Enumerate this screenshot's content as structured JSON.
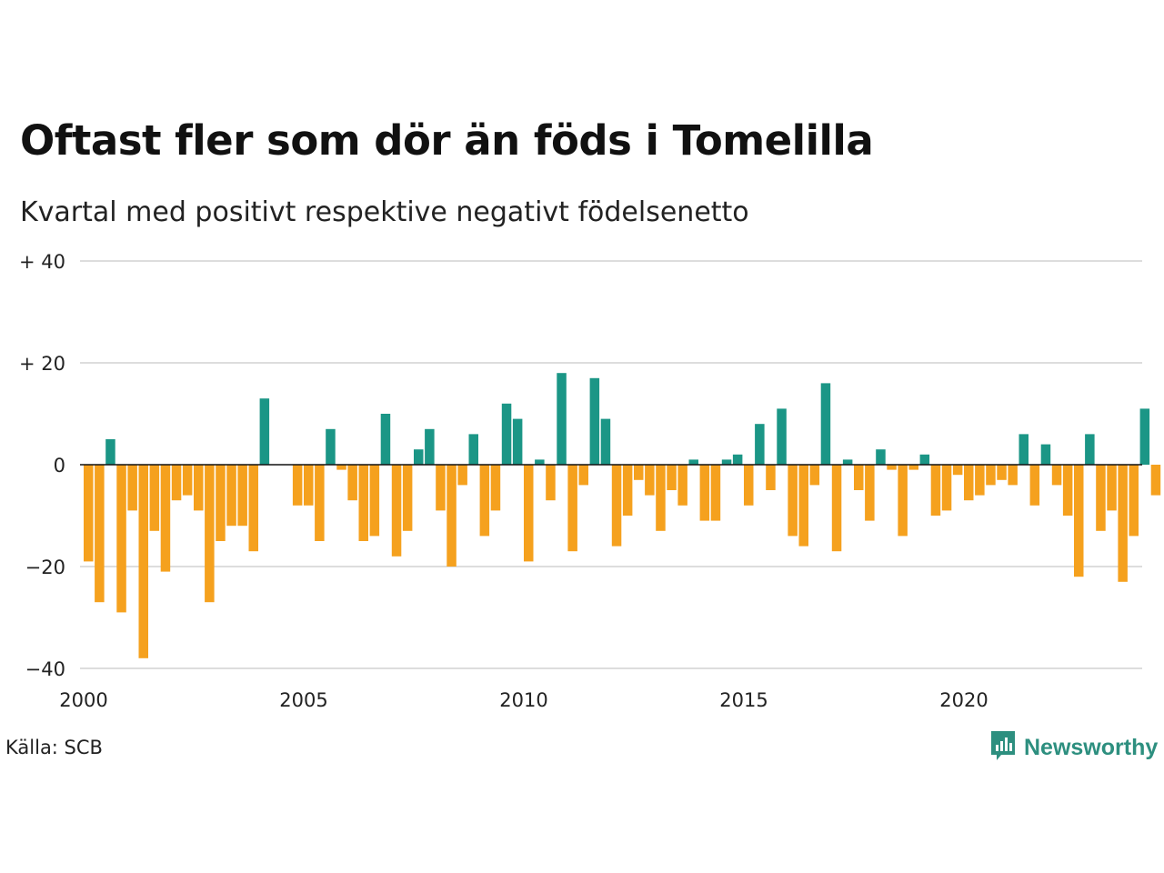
{
  "title": "Oftast fler som dör än föds i Tomelilla",
  "subtitle": "Kvartal med positivt respektive negativt födelsenetto",
  "source": "Källa: SCB",
  "brand": {
    "name": "Newsworthy",
    "icon": "bar-chart-speech-bubble-icon"
  },
  "colors": {
    "positive": "#1b9686",
    "negative": "#f5a11e",
    "grid": "#dddddd",
    "zero_line": "#111111",
    "brand": "#2d8f7f"
  },
  "chart_data": {
    "type": "bar",
    "title": "Oftast fler som dör än föds i Tomelilla",
    "subtitle": "Kvartal med positivt respektive negativt födelsenetto",
    "xlabel": "",
    "ylabel": "",
    "grid": true,
    "ylim": [
      -40,
      40
    ],
    "y_ticks": [
      {
        "value": 40,
        "label": "+ 40"
      },
      {
        "value": 20,
        "label": "+ 20"
      },
      {
        "value": 0,
        "label": "0"
      },
      {
        "value": -20,
        "label": "−20"
      },
      {
        "value": -40,
        "label": "−40"
      }
    ],
    "x_ticks": [
      {
        "value": 2000,
        "label": "2000"
      },
      {
        "value": 2005,
        "label": "2005"
      },
      {
        "value": 2010,
        "label": "2010"
      },
      {
        "value": 2015,
        "label": "2015"
      },
      {
        "value": 2020,
        "label": "2020"
      }
    ],
    "start_year": 2000,
    "periods_per_year": 4,
    "categories": [
      "2000 K1",
      "2000 K2",
      "2000 K3",
      "2000 K4",
      "2001 K1",
      "2001 K2",
      "2001 K3",
      "2001 K4",
      "2002 K1",
      "2002 K2",
      "2002 K3",
      "2002 K4",
      "2003 K1",
      "2003 K2",
      "2003 K3",
      "2003 K4",
      "2004 K1",
      "2004 K2",
      "2004 K3",
      "2004 K4",
      "2005 K1",
      "2005 K2",
      "2005 K3",
      "2005 K4",
      "2006 K1",
      "2006 K2",
      "2006 K3",
      "2006 K4",
      "2007 K1",
      "2007 K2",
      "2007 K3",
      "2007 K4",
      "2008 K1",
      "2008 K2",
      "2008 K3",
      "2008 K4",
      "2009 K1",
      "2009 K2",
      "2009 K3",
      "2009 K4",
      "2010 K1",
      "2010 K2",
      "2010 K3",
      "2010 K4",
      "2011 K1",
      "2011 K2",
      "2011 K3",
      "2011 K4",
      "2012 K1",
      "2012 K2",
      "2012 K3",
      "2012 K4",
      "2013 K1",
      "2013 K2",
      "2013 K3",
      "2013 K4",
      "2014 K1",
      "2014 K2",
      "2014 K3",
      "2014 K4",
      "2015 K1",
      "2015 K2",
      "2015 K3",
      "2015 K4",
      "2016 K1",
      "2016 K2",
      "2016 K3",
      "2016 K4",
      "2017 K1",
      "2017 K2",
      "2017 K3",
      "2017 K4",
      "2018 K1",
      "2018 K2",
      "2018 K3",
      "2018 K4",
      "2019 K1",
      "2019 K2",
      "2019 K3",
      "2019 K4",
      "2020 K1",
      "2020 K2",
      "2020 K3",
      "2020 K4",
      "2021 K1",
      "2021 K2",
      "2021 K3",
      "2021 K4",
      "2022 K1",
      "2022 K2",
      "2022 K3",
      "2022 K4",
      "2023 K1",
      "2023 K2",
      "2023 K3",
      "2023 K4",
      "2024 K1",
      "2024 K2"
    ],
    "values": [
      -19,
      -27,
      5,
      -29,
      -9,
      -38,
      -13,
      -21,
      -7,
      -6,
      -9,
      -27,
      -15,
      -12,
      -12,
      -17,
      13,
      0,
      0,
      -8,
      -8,
      -15,
      7,
      -1,
      -7,
      -15,
      -14,
      10,
      -18,
      -13,
      3,
      7,
      -9,
      -20,
      -4,
      6,
      -14,
      -9,
      12,
      9,
      -19,
      1,
      -7,
      18,
      -17,
      -4,
      17,
      9,
      -16,
      -10,
      -3,
      -6,
      -13,
      -5,
      -8,
      1,
      -11,
      -11,
      1,
      2,
      -8,
      8,
      -5,
      11,
      -14,
      -16,
      -4,
      16,
      -17,
      1,
      -5,
      -11,
      3,
      -1,
      -14,
      -1,
      2,
      -10,
      -9,
      -2,
      -7,
      -6,
      -4,
      -3,
      -4,
      6,
      -8,
      4,
      -4,
      -10,
      -22,
      6,
      -13,
      -9,
      -23,
      -14,
      11,
      -6
    ]
  }
}
